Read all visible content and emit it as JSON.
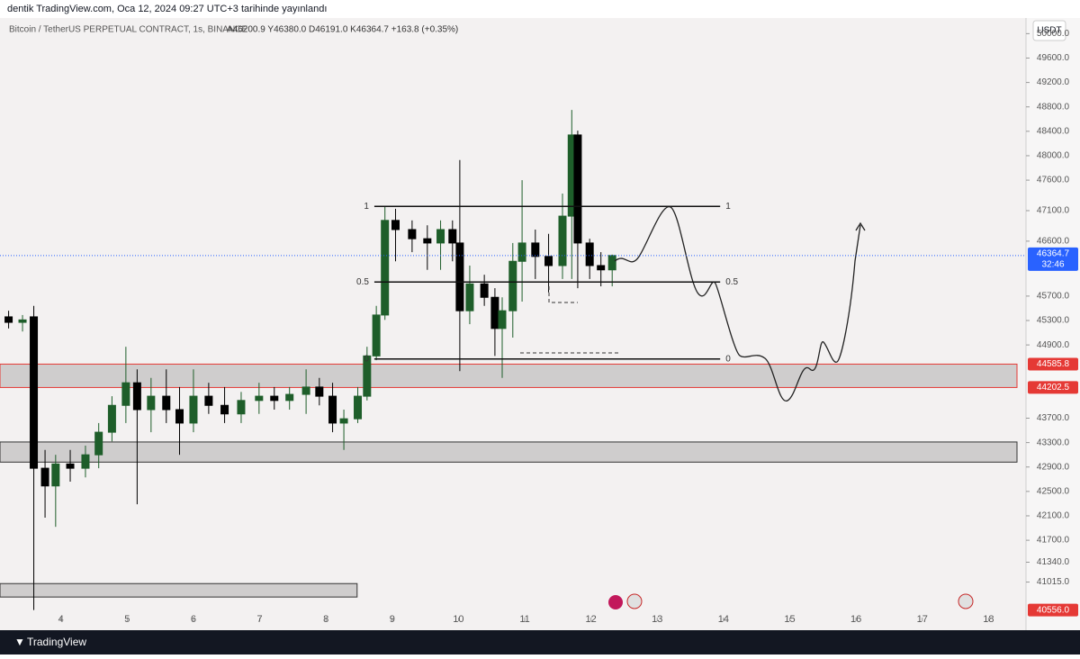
{
  "header": {
    "publisher": "dentik TradingView.com, Oca 12, 2024 09:27 UTC+3 tarihinde yayınlandı",
    "symbol": "Bitcoin / TetherUS PERPETUAL CONTRACT, 1s, BINANCE",
    "ohlc": "A46200.9 Y46380.0 D46191.0 K46364.7 +163.8 (+0.35%)",
    "currency": "USDT"
  },
  "chart_data": {
    "type": "candlestick",
    "x": [
      3.21,
      3.42,
      3.59,
      3.76,
      3.92,
      4.14,
      4.37,
      4.57,
      4.77,
      4.98,
      5.15,
      5.36,
      5.59,
      5.79,
      6.0,
      6.23,
      6.47,
      6.72,
      6.99,
      7.22,
      7.45,
      7.7,
      7.9,
      8.1,
      8.27,
      8.48,
      8.62,
      8.76,
      8.89,
      9.05,
      9.3,
      9.53,
      9.73,
      9.91,
      10.02,
      10.17,
      10.39,
      10.55,
      10.66,
      10.82,
      10.96,
      11.16,
      11.36,
      11.57,
      11.71,
      11.8,
      11.98,
      12.15,
      12.32
    ],
    "open": [
      45360,
      45270,
      45360,
      42880,
      42590,
      42950,
      42880,
      43100,
      43470,
      43910,
      44280,
      43840,
      44060,
      43840,
      43620,
      44060,
      43910,
      43770,
      43990,
      44060,
      43990,
      44090,
      44210,
      44060,
      43620,
      43690,
      44060,
      44720,
      45390,
      46940,
      46790,
      46640,
      46570,
      46790,
      46570,
      45460,
      45900,
      45680,
      45170,
      45460,
      46270,
      46570,
      46350,
      46200,
      47010,
      48340,
      46570,
      46200,
      46130
    ],
    "high": [
      45460,
      45390,
      45540,
      43180,
      43100,
      43180,
      43250,
      43620,
      44060,
      44870,
      44500,
      44360,
      44500,
      44210,
      44500,
      44280,
      44210,
      44130,
      44280,
      44210,
      44210,
      44500,
      44360,
      44280,
      43840,
      44210,
      44870,
      45540,
      47160,
      47130,
      46940,
      46860,
      46940,
      46940,
      47930,
      46200,
      46050,
      45830,
      45680,
      46570,
      47600,
      46790,
      46720,
      47380,
      48750,
      48410,
      46640,
      46420,
      46380
    ],
    "low": [
      45170,
      45120,
      40556,
      42070,
      41920,
      42660,
      42730,
      42880,
      43320,
      43620,
      42290,
      43470,
      43620,
      43100,
      43470,
      43770,
      43620,
      43620,
      43770,
      43840,
      43840,
      43770,
      43910,
      43470,
      43180,
      43620,
      43990,
      44650,
      45310,
      46270,
      46420,
      46130,
      46130,
      46270,
      44470,
      45240,
      45540,
      44720,
      44360,
      45020,
      45610,
      45980,
      45760,
      45980,
      45980,
      45830,
      45980,
      45860,
      45860
    ],
    "close": [
      45270,
      45310,
      42880,
      42590,
      42950,
      42880,
      43100,
      43470,
      43910,
      44280,
      43840,
      44060,
      43840,
      43620,
      44060,
      43910,
      43770,
      43990,
      44060,
      43990,
      44090,
      44210,
      44060,
      43620,
      43690,
      44060,
      44720,
      45390,
      46940,
      46790,
      46640,
      46570,
      46790,
      46570,
      45460,
      45900,
      45680,
      45170,
      45460,
      46270,
      46570,
      46350,
      46200,
      47010,
      48340,
      46570,
      46200,
      46130,
      46364.7
    ],
    "up_color": "#1e5e2a",
    "down_color": "#000000",
    "xlim": [
      3.08,
      18.43
    ],
    "xticks": [
      4,
      5,
      6,
      7,
      8,
      9,
      10,
      11,
      12,
      13,
      14,
      15,
      16,
      17,
      18
    ],
    "ylim": [
      40374,
      50256
    ],
    "yticks": [
      {
        "value": 50000,
        "label": "50000.0"
      },
      {
        "value": 49600,
        "label": "49600.0"
      },
      {
        "value": 49200,
        "label": "49200.0"
      },
      {
        "value": 48800,
        "label": "48800.0"
      },
      {
        "value": 48400,
        "label": "48400.0"
      },
      {
        "value": 48000,
        "label": "48000.0"
      },
      {
        "value": 47600,
        "label": "47600.0"
      },
      {
        "value": 47100,
        "label": "47100.0"
      },
      {
        "value": 46600,
        "label": "46600.0"
      },
      {
        "value": 45700,
        "label": "45700.0"
      },
      {
        "value": 45300,
        "label": "45300.0"
      },
      {
        "value": 44900,
        "label": "44900.0"
      },
      {
        "value": 43700,
        "label": "43700.0"
      },
      {
        "value": 43300,
        "label": "43300.0"
      },
      {
        "value": 42900,
        "label": "42900.0"
      },
      {
        "value": 42500,
        "label": "42500.0"
      },
      {
        "value": 42100,
        "label": "42100.0"
      },
      {
        "value": 41700,
        "label": "41700.0"
      },
      {
        "value": 41340,
        "label": "41340.0"
      },
      {
        "value": 41015,
        "label": "41015.0"
      }
    ],
    "last_price": 46364.7,
    "countdown": "32:46",
    "price_markers": [
      44585.8,
      44202.5,
      {
        "value": 40556,
        "label": "40556.0"
      }
    ],
    "fib_range": [
      8.73,
      13.95
    ],
    "fib_levels": [
      {
        "ratio": 1,
        "price": 47170
      },
      {
        "ratio": 0.5,
        "price": 45930
      },
      {
        "ratio": 0,
        "price": 44670
      }
    ],
    "zones": [
      {
        "low": 44202.5,
        "high": 44585.8,
        "start": 3.08,
        "end": 18.43,
        "border": "#e53935"
      },
      {
        "low": 42980,
        "high": 43310,
        "start": 3.08,
        "end": 18.43,
        "border": "#333333"
      },
      {
        "low": 40770,
        "high": 40990,
        "start": 3.08,
        "end": 8.47,
        "border": "#333333"
      }
    ]
  },
  "footer": {
    "brand": "TradingView"
  }
}
